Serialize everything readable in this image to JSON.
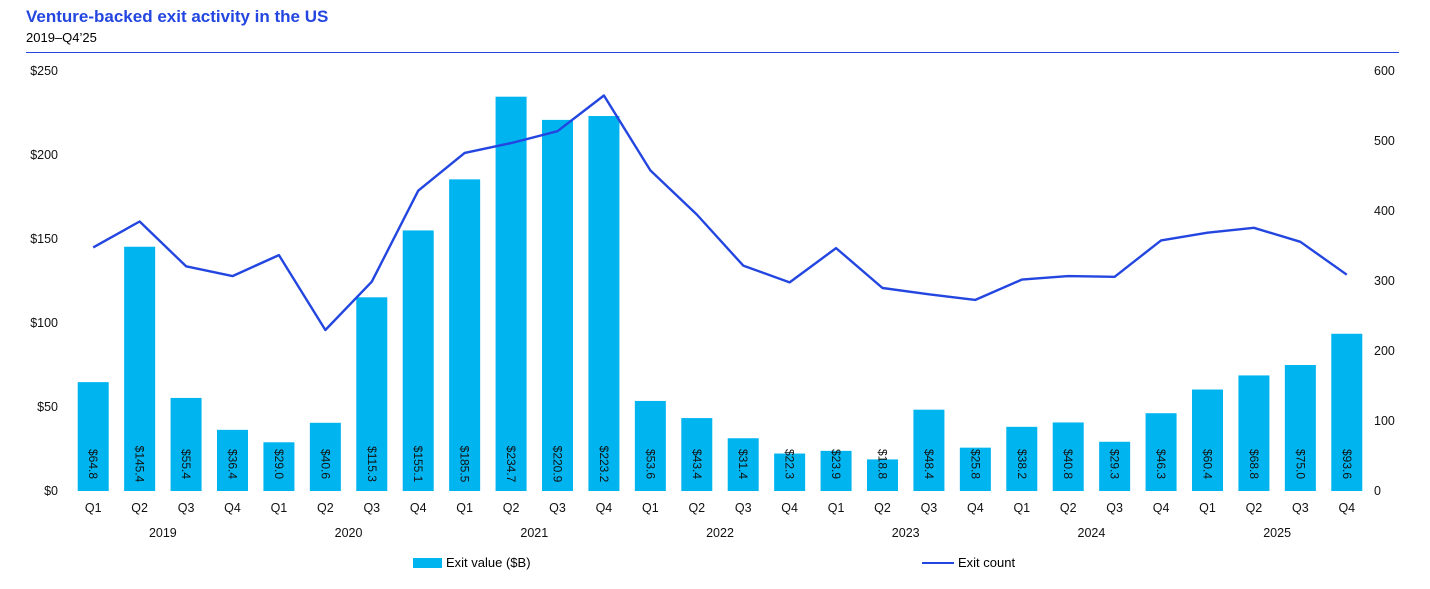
{
  "header": {
    "title": "Venture-backed exit activity in the US",
    "subtitle": "2019–Q4’25"
  },
  "colors": {
    "bar": "#00b4f0",
    "line": "#2346e0",
    "accent": "#2346e0"
  },
  "chart_data": {
    "type": "bar",
    "title": "Venture-backed exit activity in the US",
    "subtitle": "2019–Q4’25",
    "categories": [
      "Q1",
      "Q2",
      "Q3",
      "Q4",
      "Q1",
      "Q2",
      "Q3",
      "Q4",
      "Q1",
      "Q2",
      "Q3",
      "Q4",
      "Q1",
      "Q2",
      "Q3",
      "Q4",
      "Q1",
      "Q2",
      "Q3",
      "Q4",
      "Q1",
      "Q2",
      "Q3",
      "Q4",
      "Q1",
      "Q2",
      "Q3",
      "Q4"
    ],
    "year_groups": [
      {
        "label": "2019",
        "start": 0,
        "end": 3
      },
      {
        "label": "2020",
        "start": 4,
        "end": 7
      },
      {
        "label": "2021",
        "start": 8,
        "end": 11
      },
      {
        "label": "2022",
        "start": 12,
        "end": 15
      },
      {
        "label": "2023",
        "start": 16,
        "end": 19
      },
      {
        "label": "2024",
        "start": 20,
        "end": 23
      },
      {
        "label": "2025",
        "start": 24,
        "end": 27
      }
    ],
    "series": [
      {
        "name": "Exit value ($B)",
        "type": "bar",
        "axis": "left",
        "values": [
          64.8,
          145.4,
          55.4,
          36.4,
          29.0,
          40.6,
          115.3,
          155.1,
          185.5,
          234.7,
          220.9,
          223.2,
          53.6,
          43.4,
          31.4,
          22.3,
          23.9,
          18.8,
          48.4,
          25.8,
          38.2,
          40.8,
          29.3,
          46.3,
          60.4,
          68.8,
          75.0,
          93.6
        ],
        "labels": [
          "$64.8",
          "$145.4",
          "$55.4",
          "$36.4",
          "$29.0",
          "$40.6",
          "$115.3",
          "$155.1",
          "$185.5",
          "$234.7",
          "$220.9",
          "$223.2",
          "$53.6",
          "$43.4",
          "$31.4",
          "$22.3",
          "$23.9",
          "$18.8",
          "$48.4",
          "$25.8",
          "$38.2",
          "$40.8",
          "$29.3",
          "$46.3",
          "$60.4",
          "$68.8",
          "$75.0",
          "$93.6"
        ]
      },
      {
        "name": "Exit count",
        "type": "line",
        "axis": "right",
        "values": [
          348,
          385,
          321,
          307,
          337,
          230,
          299,
          429,
          483,
          497,
          514,
          565,
          458,
          395,
          322,
          298,
          347,
          290,
          281,
          273,
          302,
          307,
          306,
          358,
          369,
          376,
          356,
          309
        ]
      }
    ],
    "y_left": {
      "min": 0,
      "max": 250,
      "ticks": [
        0,
        50,
        100,
        150,
        200,
        250
      ],
      "tick_labels": [
        "$0",
        "$50",
        "$100",
        "$150",
        "$200",
        "$250"
      ]
    },
    "y_right": {
      "min": 0,
      "max": 600,
      "ticks": [
        0,
        100,
        200,
        300,
        400,
        500,
        600
      ],
      "tick_labels": [
        "0",
        "100",
        "200",
        "300",
        "400",
        "500",
        "600"
      ]
    },
    "legend": {
      "position": "bottom",
      "items": [
        "Exit value ($B)",
        "Exit count"
      ]
    },
    "grid": false
  }
}
